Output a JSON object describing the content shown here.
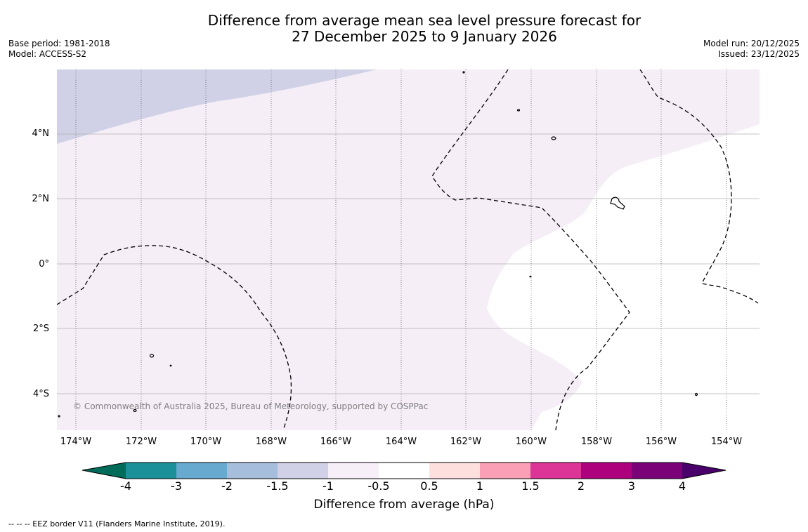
{
  "title": {
    "line1": "Difference from average mean sea level pressure forecast for",
    "line2": "27 December 2025 to 9 January 2026"
  },
  "meta_left": {
    "base_period": "Base period: 1981-2018",
    "model": "Model: ACCESS-S2"
  },
  "meta_right": {
    "model_run": "Model run: 20/12/2025",
    "issued": "Issued: 23/12/2025"
  },
  "map": {
    "x_ticks": [
      "174°W",
      "172°W",
      "170°W",
      "168°W",
      "166°W",
      "164°W",
      "162°W",
      "160°W",
      "158°W",
      "156°W",
      "154°W"
    ],
    "y_ticks": [
      "4°N",
      "2°N",
      "0°",
      "2°S",
      "4°S"
    ],
    "copyright": "© Commonwealth of Australia 2025, Bureau of Meteorology, supported by COSPPac",
    "colors": {
      "band_neg_1_5_to_neg_1": "#d0d1e6",
      "band_neg_1_to_neg_0_5": "#f5eef7",
      "band_neg_0_5_to_0_5": "#ffffff",
      "gridline": "#b0b0b0",
      "meridian": "#555555"
    }
  },
  "colorbar": {
    "labels": [
      "-4",
      "-3",
      "-2",
      "-1.5",
      "-1",
      "-0.5",
      "0.5",
      "1",
      "1.5",
      "2",
      "3",
      "4"
    ],
    "colors": [
      "#016c59",
      "#1c9099",
      "#67a9cf",
      "#a6bddb",
      "#d0d1e6",
      "#f6eff7",
      "#ffffff",
      "#fde0dd",
      "#fa9fb5",
      "#dd3497",
      "#ae017e",
      "#7a0177",
      "#49006a"
    ],
    "title": "Difference from average (hPa)"
  },
  "footnote": "-- -- -- EEZ border V11 (Flanders Marine Institute, 2019)."
}
